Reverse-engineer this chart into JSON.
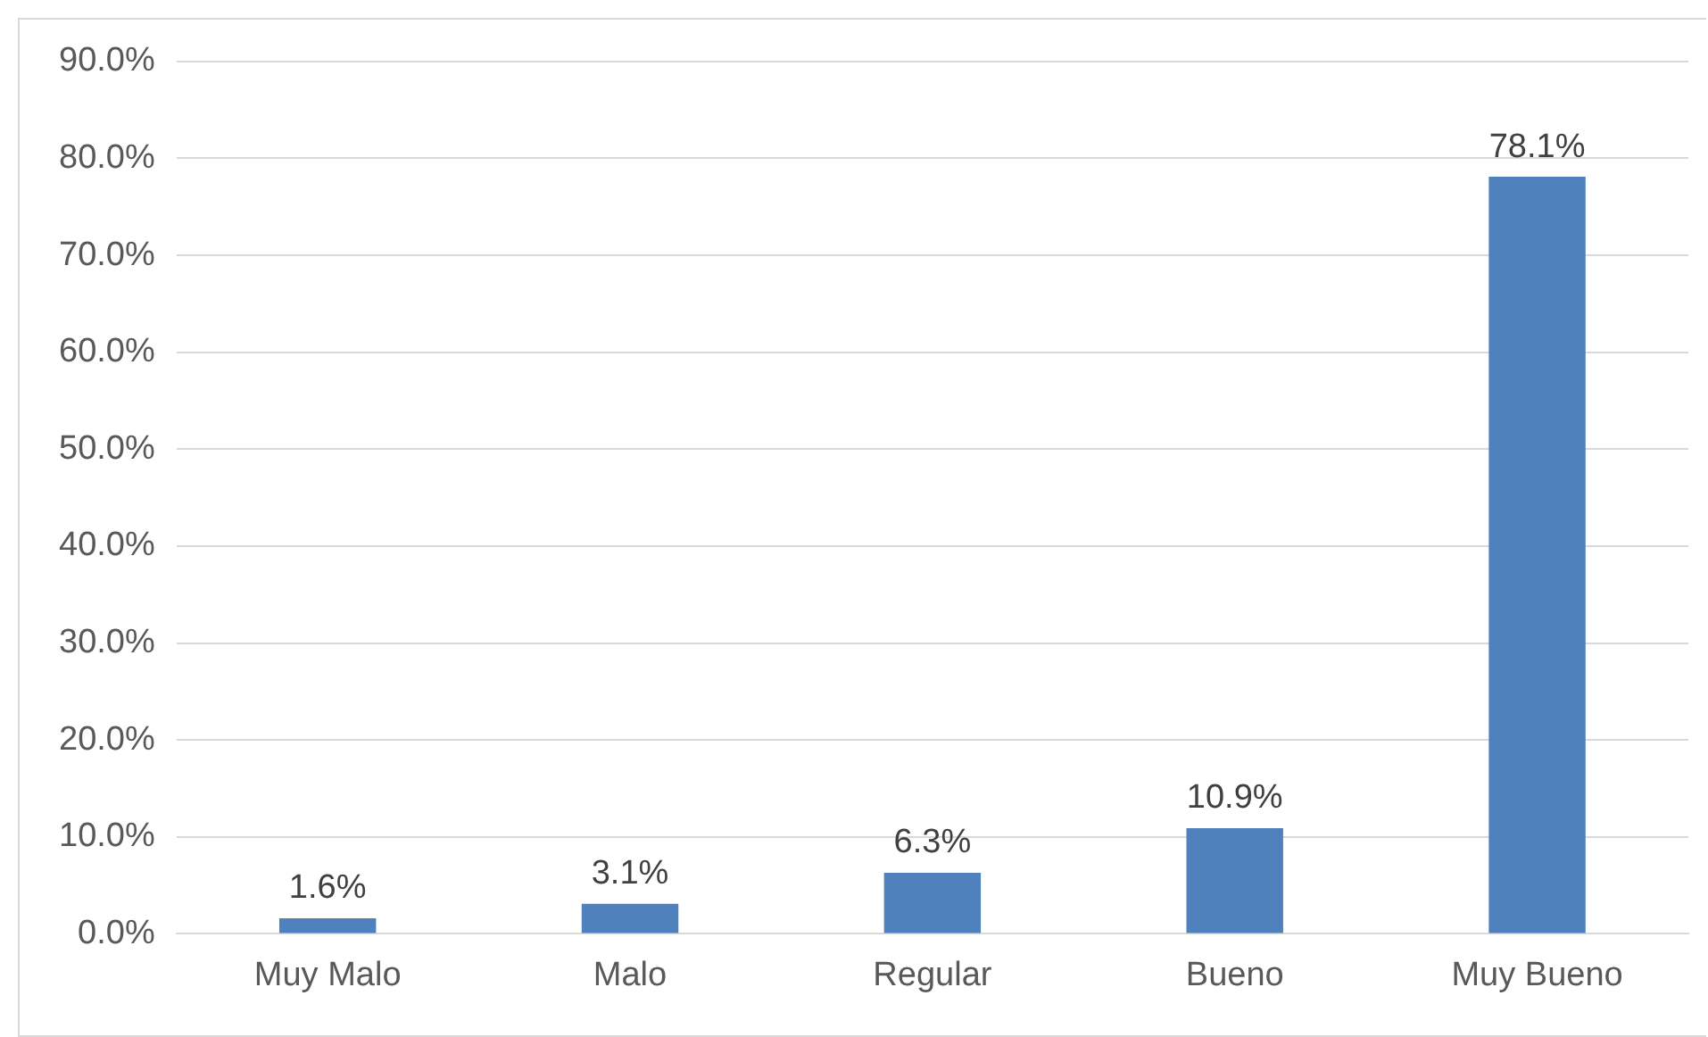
{
  "chart_data": {
    "type": "bar",
    "categories": [
      "Muy Malo",
      "Malo",
      "Regular",
      "Bueno",
      "Muy Bueno"
    ],
    "values": [
      1.6,
      3.1,
      6.3,
      10.9,
      78.1
    ],
    "color": "#4f81bd",
    "value_labels": [
      "1.6%",
      "3.1%",
      "6.3%",
      "10.9%",
      "78.1%"
    ],
    "ylim": [
      0,
      90
    ],
    "yticks": [
      {
        "value": 0,
        "label": "0.0%"
      },
      {
        "value": 10,
        "label": "10.0%"
      },
      {
        "value": 20,
        "label": "20.0%"
      },
      {
        "value": 30,
        "label": "30.0%"
      },
      {
        "value": 40,
        "label": "40.0%"
      },
      {
        "value": 50,
        "label": "50.0%"
      },
      {
        "value": 60,
        "label": "60.0%"
      },
      {
        "value": 70,
        "label": "70.0%"
      },
      {
        "value": 80,
        "label": "80.0%"
      },
      {
        "value": 90,
        "label": "90.0%"
      }
    ],
    "grid": "y",
    "legend": false
  }
}
